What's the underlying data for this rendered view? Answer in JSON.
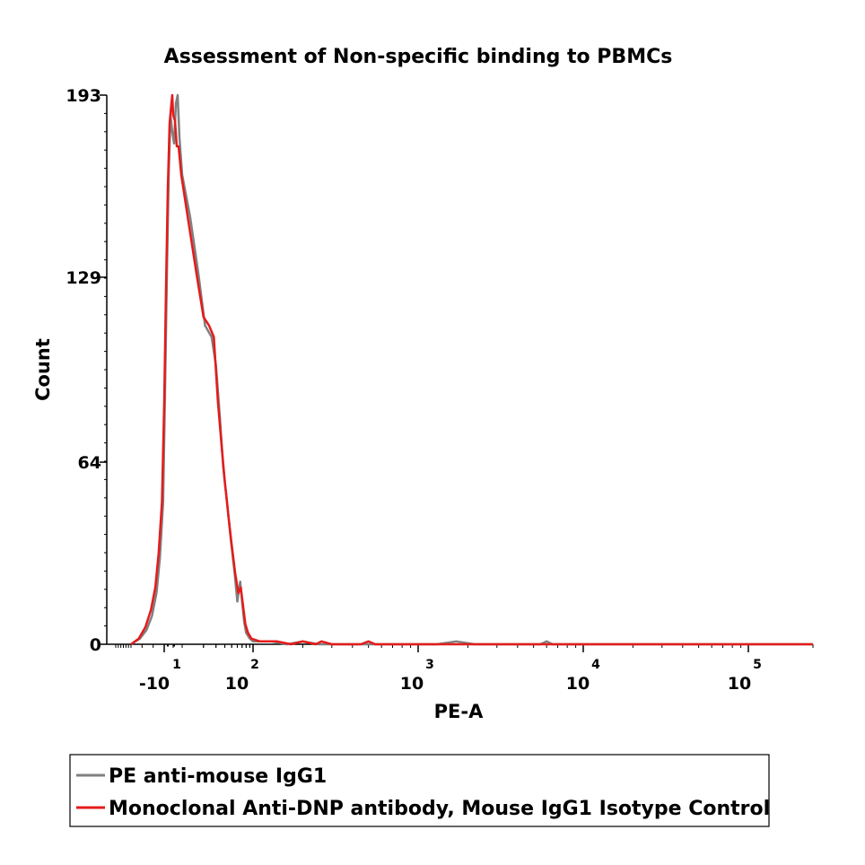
{
  "chart_data": {
    "type": "line",
    "title": "Assessment of Non-specific binding to PBMCs",
    "xlabel": "PE-A",
    "ylabel": "Count",
    "x_scale": "biexponential",
    "ylim": [
      0,
      193
    ],
    "y_ticks": [
      {
        "value": 0,
        "label": "0"
      },
      {
        "value": 64,
        "label": "64"
      },
      {
        "value": 129,
        "label": "129"
      },
      {
        "value": 193,
        "label": "193"
      }
    ],
    "x_ticks": [
      {
        "value": -10,
        "label": "-10",
        "exp": "1"
      },
      {
        "value": 100,
        "label": "10",
        "exp": "2"
      },
      {
        "value": 1000,
        "label": "10",
        "exp": "3"
      },
      {
        "value": 10000,
        "label": "10",
        "exp": "4"
      },
      {
        "value": 100000,
        "label": "10",
        "exp": "5"
      }
    ],
    "legend_position": "bottom",
    "series": [
      {
        "name": "PE anti-mouse IgG1",
        "color": "#808080",
        "points": [
          [
            -40,
            0
          ],
          [
            -32,
            2
          ],
          [
            -26,
            5
          ],
          [
            -21,
            10
          ],
          [
            -17,
            18
          ],
          [
            -14,
            30
          ],
          [
            -11,
            50
          ],
          [
            -9,
            90
          ],
          [
            -7,
            130
          ],
          [
            -5,
            165
          ],
          [
            -3,
            186
          ],
          [
            -1,
            180
          ],
          [
            1,
            176
          ],
          [
            3,
            190
          ],
          [
            5,
            193
          ],
          [
            7,
            178
          ],
          [
            10,
            165
          ],
          [
            13,
            150
          ],
          [
            17,
            130
          ],
          [
            21,
            112
          ],
          [
            26,
            108
          ],
          [
            30,
            98
          ],
          [
            34,
            80
          ],
          [
            38,
            62
          ],
          [
            43,
            50
          ],
          [
            48,
            38
          ],
          [
            55,
            25
          ],
          [
            60,
            15
          ],
          [
            66,
            22
          ],
          [
            70,
            15
          ],
          [
            75,
            8
          ],
          [
            80,
            4
          ],
          [
            90,
            2
          ],
          [
            100,
            1
          ],
          [
            130,
            1
          ],
          [
            160,
            0
          ],
          [
            200,
            1
          ],
          [
            250,
            0
          ],
          [
            1300,
            0
          ],
          [
            1700,
            1
          ],
          [
            2200,
            0
          ],
          [
            5500,
            0
          ],
          [
            6000,
            1
          ],
          [
            6500,
            0
          ],
          [
            100000,
            0
          ],
          [
            200000,
            0
          ]
        ]
      },
      {
        "name": "Monoclonal Anti-DNP antibody, Mouse IgG1 Isotype Control",
        "color": "#e51b1b",
        "points": [
          [
            -40,
            0
          ],
          [
            -33,
            2
          ],
          [
            -27,
            6
          ],
          [
            -22,
            12
          ],
          [
            -18,
            20
          ],
          [
            -15,
            32
          ],
          [
            -12,
            50
          ],
          [
            -10,
            85
          ],
          [
            -8,
            125
          ],
          [
            -6,
            160
          ],
          [
            -4,
            183
          ],
          [
            -2,
            190
          ],
          [
            -1,
            193
          ],
          [
            0,
            186
          ],
          [
            2,
            184
          ],
          [
            4,
            175
          ],
          [
            6,
            175
          ],
          [
            9,
            165
          ],
          [
            12,
            150
          ],
          [
            16,
            130
          ],
          [
            20,
            115
          ],
          [
            24,
            112
          ],
          [
            28,
            108
          ],
          [
            32,
            85
          ],
          [
            36,
            70
          ],
          [
            40,
            57
          ],
          [
            45,
            45
          ],
          [
            50,
            35
          ],
          [
            56,
            25
          ],
          [
            62,
            18
          ],
          [
            67,
            20
          ],
          [
            72,
            14
          ],
          [
            78,
            7
          ],
          [
            85,
            4
          ],
          [
            95,
            2
          ],
          [
            110,
            1
          ],
          [
            140,
            1
          ],
          [
            170,
            0
          ],
          [
            200,
            1
          ],
          [
            240,
            0
          ],
          [
            260,
            1
          ],
          [
            300,
            0
          ],
          [
            450,
            0
          ],
          [
            500,
            1
          ],
          [
            550,
            0
          ],
          [
            100000,
            0
          ],
          [
            200000,
            0
          ]
        ]
      }
    ]
  }
}
